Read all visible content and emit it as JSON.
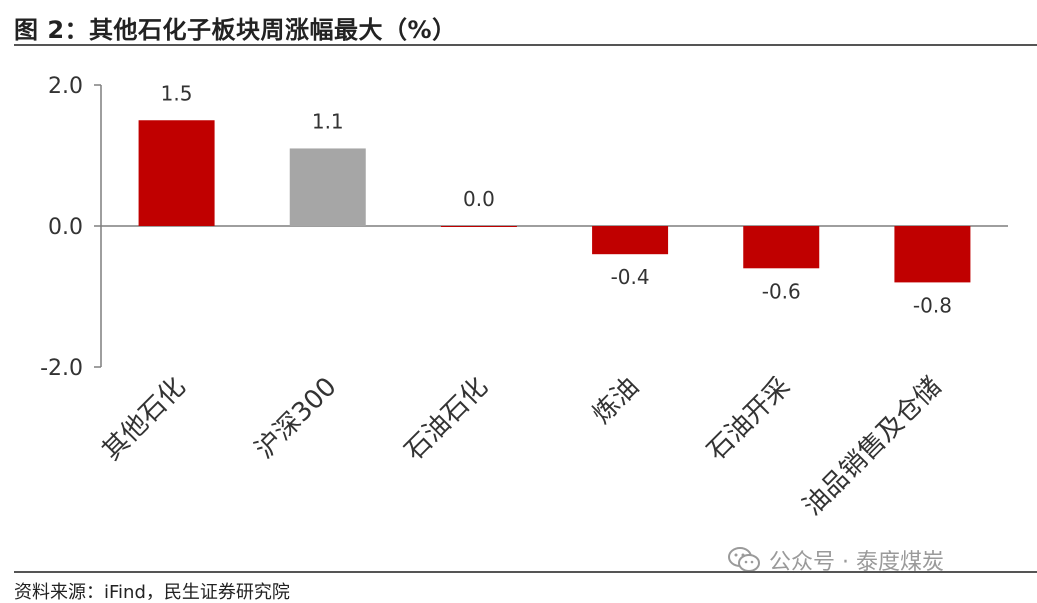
{
  "figure": {
    "title": "图 2：其他石化子板块周涨幅最大（%）",
    "source": "资料来源：iFind，民生证券研究院",
    "watermark": "公众号 · 泰度煤炭",
    "watermark_icon": "wechat-icon"
  },
  "colors": {
    "primary": "#C00000",
    "benchmark": "#A6A6A6",
    "axis": "#7F7F7F",
    "rule": "#555555"
  },
  "chart_data": {
    "type": "bar",
    "title": "其他石化子板块周涨幅最大（%）",
    "xlabel": "",
    "ylabel": "",
    "ylim": [
      -2.0,
      2.0
    ],
    "yticks": [
      2.0,
      0.0,
      -2.0
    ],
    "ytick_labels": [
      "2.0",
      "0.0",
      "-2.0"
    ],
    "grid": false,
    "legend": "none",
    "categories": [
      "其他石化",
      "沪深300",
      "石油石化",
      "炼油",
      "石油开采",
      "油品销售及仓储"
    ],
    "values": [
      1.5,
      1.1,
      0.0,
      -0.4,
      -0.6,
      -0.8
    ],
    "value_labels": [
      "1.5",
      "1.1",
      "0.0",
      "-0.4",
      "-0.6",
      "-0.8"
    ],
    "bar_colors": [
      "#C00000",
      "#A6A6A6",
      "#C00000",
      "#C00000",
      "#C00000",
      "#C00000"
    ]
  }
}
